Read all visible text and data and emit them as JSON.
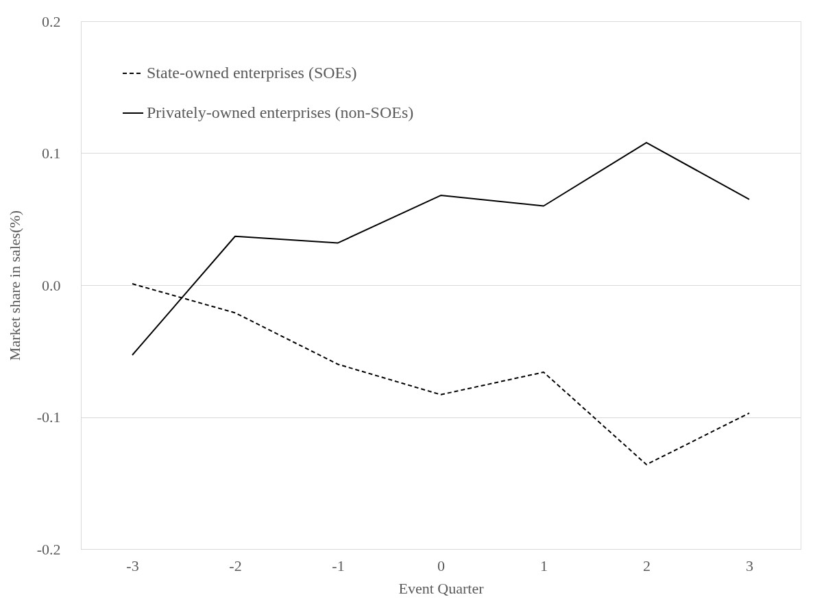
{
  "chart_data": {
    "type": "line",
    "xlabel": "Event Quarter",
    "ylabel": "Market share in sales(%)",
    "categories": [
      "-3",
      "-2",
      "-1",
      "0",
      "1",
      "2",
      "3"
    ],
    "series": [
      {
        "name": "State-owned enterprises (SOEs)",
        "color": "#000000",
        "line_style": "dashed",
        "values": [
          0.001,
          -0.021,
          -0.06,
          -0.083,
          -0.066,
          -0.136,
          -0.097
        ]
      },
      {
        "name": "Privately-owned enterprises (non-SOEs)",
        "color": "#000000",
        "line_style": "solid",
        "values": [
          -0.053,
          0.037,
          0.032,
          0.068,
          0.06,
          0.108,
          0.065
        ]
      }
    ],
    "ylim": [
      -0.2,
      0.2
    ],
    "yticks": [
      {
        "value": -0.2,
        "label": "-0.2"
      },
      {
        "value": -0.1,
        "label": "-0.1"
      },
      {
        "value": 0,
        "label": "0.0"
      },
      {
        "value": 0.1,
        "label": "0.1"
      },
      {
        "value": 0.2,
        "label": "0.2"
      }
    ],
    "grid": "y",
    "legend": "top left",
    "marker": "none"
  }
}
